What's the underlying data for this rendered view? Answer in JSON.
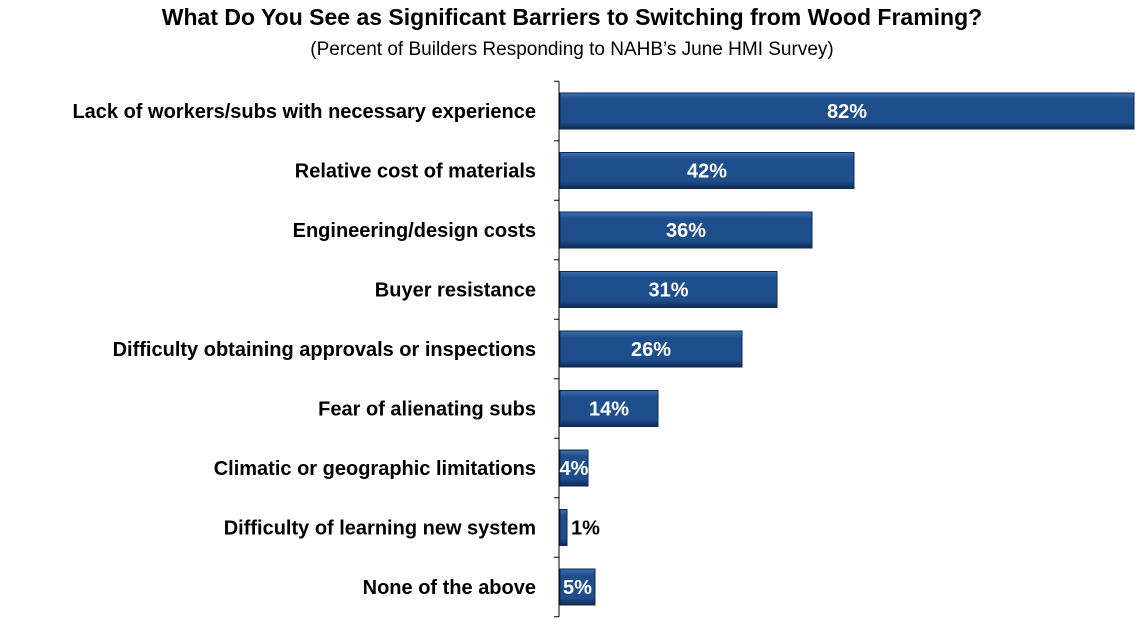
{
  "chart_data": {
    "type": "bar",
    "orientation": "horizontal",
    "title": "What Do You See as Significant Barriers to Switching from Wood Framing?",
    "subtitle": "(Percent of Builders Responding to NAHB’s June HMI Survey)",
    "categories": [
      "Lack of workers/subs with necessary experience",
      "Relative cost of materials",
      "Engineering/design costs",
      "Buyer resistance",
      "Difficulty obtaining approvals or inspections",
      "Fear of alienating subs",
      "Climatic or geographic limitations",
      "Difficulty of learning new system",
      "None of the above"
    ],
    "values": [
      82,
      42,
      36,
      31,
      26,
      14,
      4,
      1,
      5
    ],
    "value_labels": [
      "82%",
      "42%",
      "36%",
      "31%",
      "26%",
      "14%",
      "4%",
      "1%",
      "5%"
    ],
    "xlim": [
      0,
      82
    ],
    "grid": false,
    "colors": {
      "bar": "#1F4E8C",
      "bar_light": "#3C6EB0",
      "bar_dark": "#0E2A52",
      "label_inside": "#FFFFFF",
      "label_outside": "#000000",
      "axis": "#000000"
    }
  }
}
